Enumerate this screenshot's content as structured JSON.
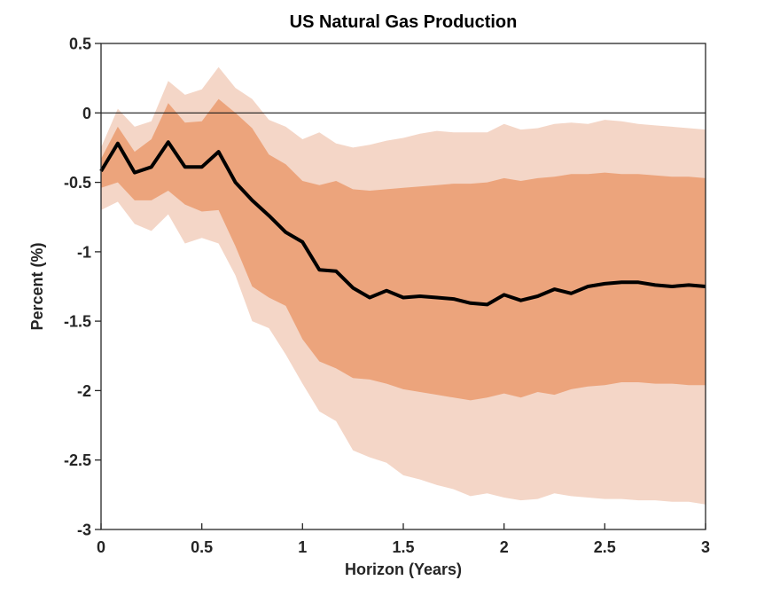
{
  "figure": {
    "title": "US Natural Gas Production",
    "xlabel": "Horizon (Years)",
    "ylabel": "Percent (%)"
  },
  "chart_data": {
    "type": "line",
    "title": "US Natural Gas Production",
    "xlabel": "Horizon (Years)",
    "ylabel": "Percent (%)",
    "xlim": [
      0,
      3
    ],
    "ylim": [
      -3,
      0.5
    ],
    "grid": false,
    "zero_line": true,
    "legend": "none",
    "x_ticks": [
      {
        "v": 0,
        "label": "0"
      },
      {
        "v": 0.5,
        "label": "0.5"
      },
      {
        "v": 1,
        "label": "1"
      },
      {
        "v": 1.5,
        "label": "1.5"
      },
      {
        "v": 2,
        "label": "2"
      },
      {
        "v": 2.5,
        "label": "2.5"
      },
      {
        "v": 3,
        "label": "3"
      }
    ],
    "y_ticks": [
      {
        "v": 0.5,
        "label": "0.5"
      },
      {
        "v": 0,
        "label": "0"
      },
      {
        "v": -0.5,
        "label": "-0.5"
      },
      {
        "v": -1,
        "label": "-1"
      },
      {
        "v": -1.5,
        "label": "-1.5"
      },
      {
        "v": -2,
        "label": "-2"
      },
      {
        "v": -2.5,
        "label": "-2.5"
      },
      {
        "v": -3,
        "label": "-3"
      }
    ],
    "x": [
      0,
      0.0833,
      0.1667,
      0.25,
      0.3333,
      0.4167,
      0.5,
      0.5833,
      0.6667,
      0.75,
      0.8333,
      0.9167,
      1,
      1.0833,
      1.1667,
      1.25,
      1.3333,
      1.4167,
      1.5,
      1.5833,
      1.6667,
      1.75,
      1.8333,
      1.9167,
      2,
      2.0833,
      2.1667,
      2.25,
      2.3333,
      2.4167,
      2.5,
      2.5833,
      2.6667,
      2.75,
      2.8333,
      2.9167,
      3
    ],
    "series": [
      {
        "name": "median-response",
        "role": "center-line",
        "values": [
          -0.42,
          -0.22,
          -0.43,
          -0.39,
          -0.21,
          -0.39,
          -0.39,
          -0.28,
          -0.5,
          -0.63,
          -0.74,
          -0.86,
          -0.93,
          -1.13,
          -1.14,
          -1.26,
          -1.33,
          -1.28,
          -1.33,
          -1.32,
          -1.33,
          -1.34,
          -1.37,
          -1.38,
          -1.31,
          -1.35,
          -1.32,
          -1.27,
          -1.3,
          -1.25,
          -1.23,
          -1.22,
          -1.22,
          -1.24,
          -1.25,
          -1.24,
          -1.25
        ]
      },
      {
        "name": "inner-band-upper",
        "role": "inner-confidence-upper",
        "values": [
          -0.33,
          -0.1,
          -0.28,
          -0.19,
          0.07,
          -0.07,
          -0.06,
          0.1,
          0.0,
          -0.11,
          -0.3,
          -0.37,
          -0.49,
          -0.52,
          -0.49,
          -0.55,
          -0.56,
          -0.55,
          -0.54,
          -0.53,
          -0.52,
          -0.51,
          -0.51,
          -0.5,
          -0.47,
          -0.49,
          -0.47,
          -0.46,
          -0.44,
          -0.44,
          -0.43,
          -0.44,
          -0.44,
          -0.45,
          -0.46,
          -0.46,
          -0.47
        ]
      },
      {
        "name": "inner-band-lower",
        "role": "inner-confidence-lower",
        "values": [
          -0.54,
          -0.5,
          -0.63,
          -0.63,
          -0.56,
          -0.66,
          -0.71,
          -0.7,
          -0.96,
          -1.25,
          -1.33,
          -1.39,
          -1.63,
          -1.79,
          -1.84,
          -1.91,
          -1.92,
          -1.95,
          -1.99,
          -2.01,
          -2.03,
          -2.05,
          -2.07,
          -2.05,
          -2.02,
          -2.05,
          -2.01,
          -2.03,
          -1.99,
          -1.97,
          -1.96,
          -1.94,
          -1.94,
          -1.95,
          -1.95,
          -1.96,
          -1.96
        ]
      },
      {
        "name": "outer-band-upper",
        "role": "outer-confidence-upper",
        "values": [
          -0.25,
          0.03,
          -0.1,
          -0.06,
          0.23,
          0.13,
          0.17,
          0.33,
          0.18,
          0.1,
          -0.05,
          -0.1,
          -0.19,
          -0.14,
          -0.22,
          -0.25,
          -0.23,
          -0.2,
          -0.18,
          -0.15,
          -0.13,
          -0.14,
          -0.14,
          -0.14,
          -0.08,
          -0.12,
          -0.11,
          -0.08,
          -0.07,
          -0.08,
          -0.05,
          -0.06,
          -0.08,
          -0.09,
          -0.1,
          -0.11,
          -0.12
        ]
      },
      {
        "name": "outer-band-lower",
        "role": "outer-confidence-lower",
        "values": [
          -0.7,
          -0.64,
          -0.8,
          -0.85,
          -0.73,
          -0.94,
          -0.9,
          -0.94,
          -1.17,
          -1.5,
          -1.55,
          -1.74,
          -1.95,
          -2.15,
          -2.22,
          -2.43,
          -2.48,
          -2.52,
          -2.61,
          -2.64,
          -2.68,
          -2.71,
          -2.76,
          -2.74,
          -2.77,
          -2.79,
          -2.78,
          -2.74,
          -2.76,
          -2.77,
          -2.78,
          -2.78,
          -2.79,
          -2.79,
          -2.8,
          -2.8,
          -2.82
        ]
      }
    ],
    "colors": {
      "inner_band": "#ECA47C",
      "outer_band": "#F4D6C7",
      "line": "#000000",
      "zero_line": "#1a1a1a",
      "axis": "#252525"
    }
  }
}
